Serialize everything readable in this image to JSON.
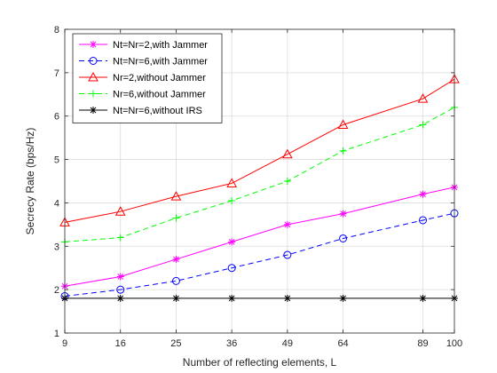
{
  "chart_data": {
    "type": "line",
    "title": "",
    "xlabel": "Number of reflecting elements, L",
    "ylabel": "Secrecy Rate (bps/Hz)",
    "x": [
      9,
      16,
      25,
      36,
      49,
      64,
      89,
      100
    ],
    "x_ticks": [
      "9",
      "16",
      "25",
      "36",
      "49",
      "64",
      "89",
      "100"
    ],
    "xlim": [
      9,
      100
    ],
    "ylim": [
      1,
      8
    ],
    "y_ticks": [
      1,
      2,
      3,
      4,
      5,
      6,
      7,
      8
    ],
    "grid": true,
    "legend_position": "top-left",
    "series": [
      {
        "name": "Nt=Nr=2,with Jammer",
        "values": [
          2.08,
          2.3,
          2.7,
          3.1,
          3.5,
          3.75,
          4.2,
          4.36
        ],
        "color": "#ff00ff",
        "marker": "asterisk",
        "line": "solid"
      },
      {
        "name": "Nt=Nr=6,with Jammer",
        "values": [
          1.85,
          2.0,
          2.2,
          2.5,
          2.8,
          3.18,
          3.6,
          3.76
        ],
        "color": "#0000ff",
        "marker": "circle",
        "line": "dashed"
      },
      {
        "name": "Nr=2,without Jammer",
        "values": [
          3.55,
          3.8,
          4.15,
          4.45,
          5.12,
          5.8,
          6.4,
          6.85
        ],
        "color": "#ff0000",
        "marker": "triangle",
        "line": "solid"
      },
      {
        "name": "Nr=6,without Jammer",
        "values": [
          3.1,
          3.2,
          3.65,
          4.05,
          4.5,
          5.2,
          5.8,
          6.2
        ],
        "color": "#00ff00",
        "marker": "plus",
        "line": "dashed"
      },
      {
        "name": "Nt=Nr=6,without IRS",
        "values": [
          1.8,
          1.8,
          1.8,
          1.8,
          1.8,
          1.8,
          1.8,
          1.8
        ],
        "color": "#000000",
        "marker": "asterisk",
        "line": "solid"
      }
    ]
  }
}
